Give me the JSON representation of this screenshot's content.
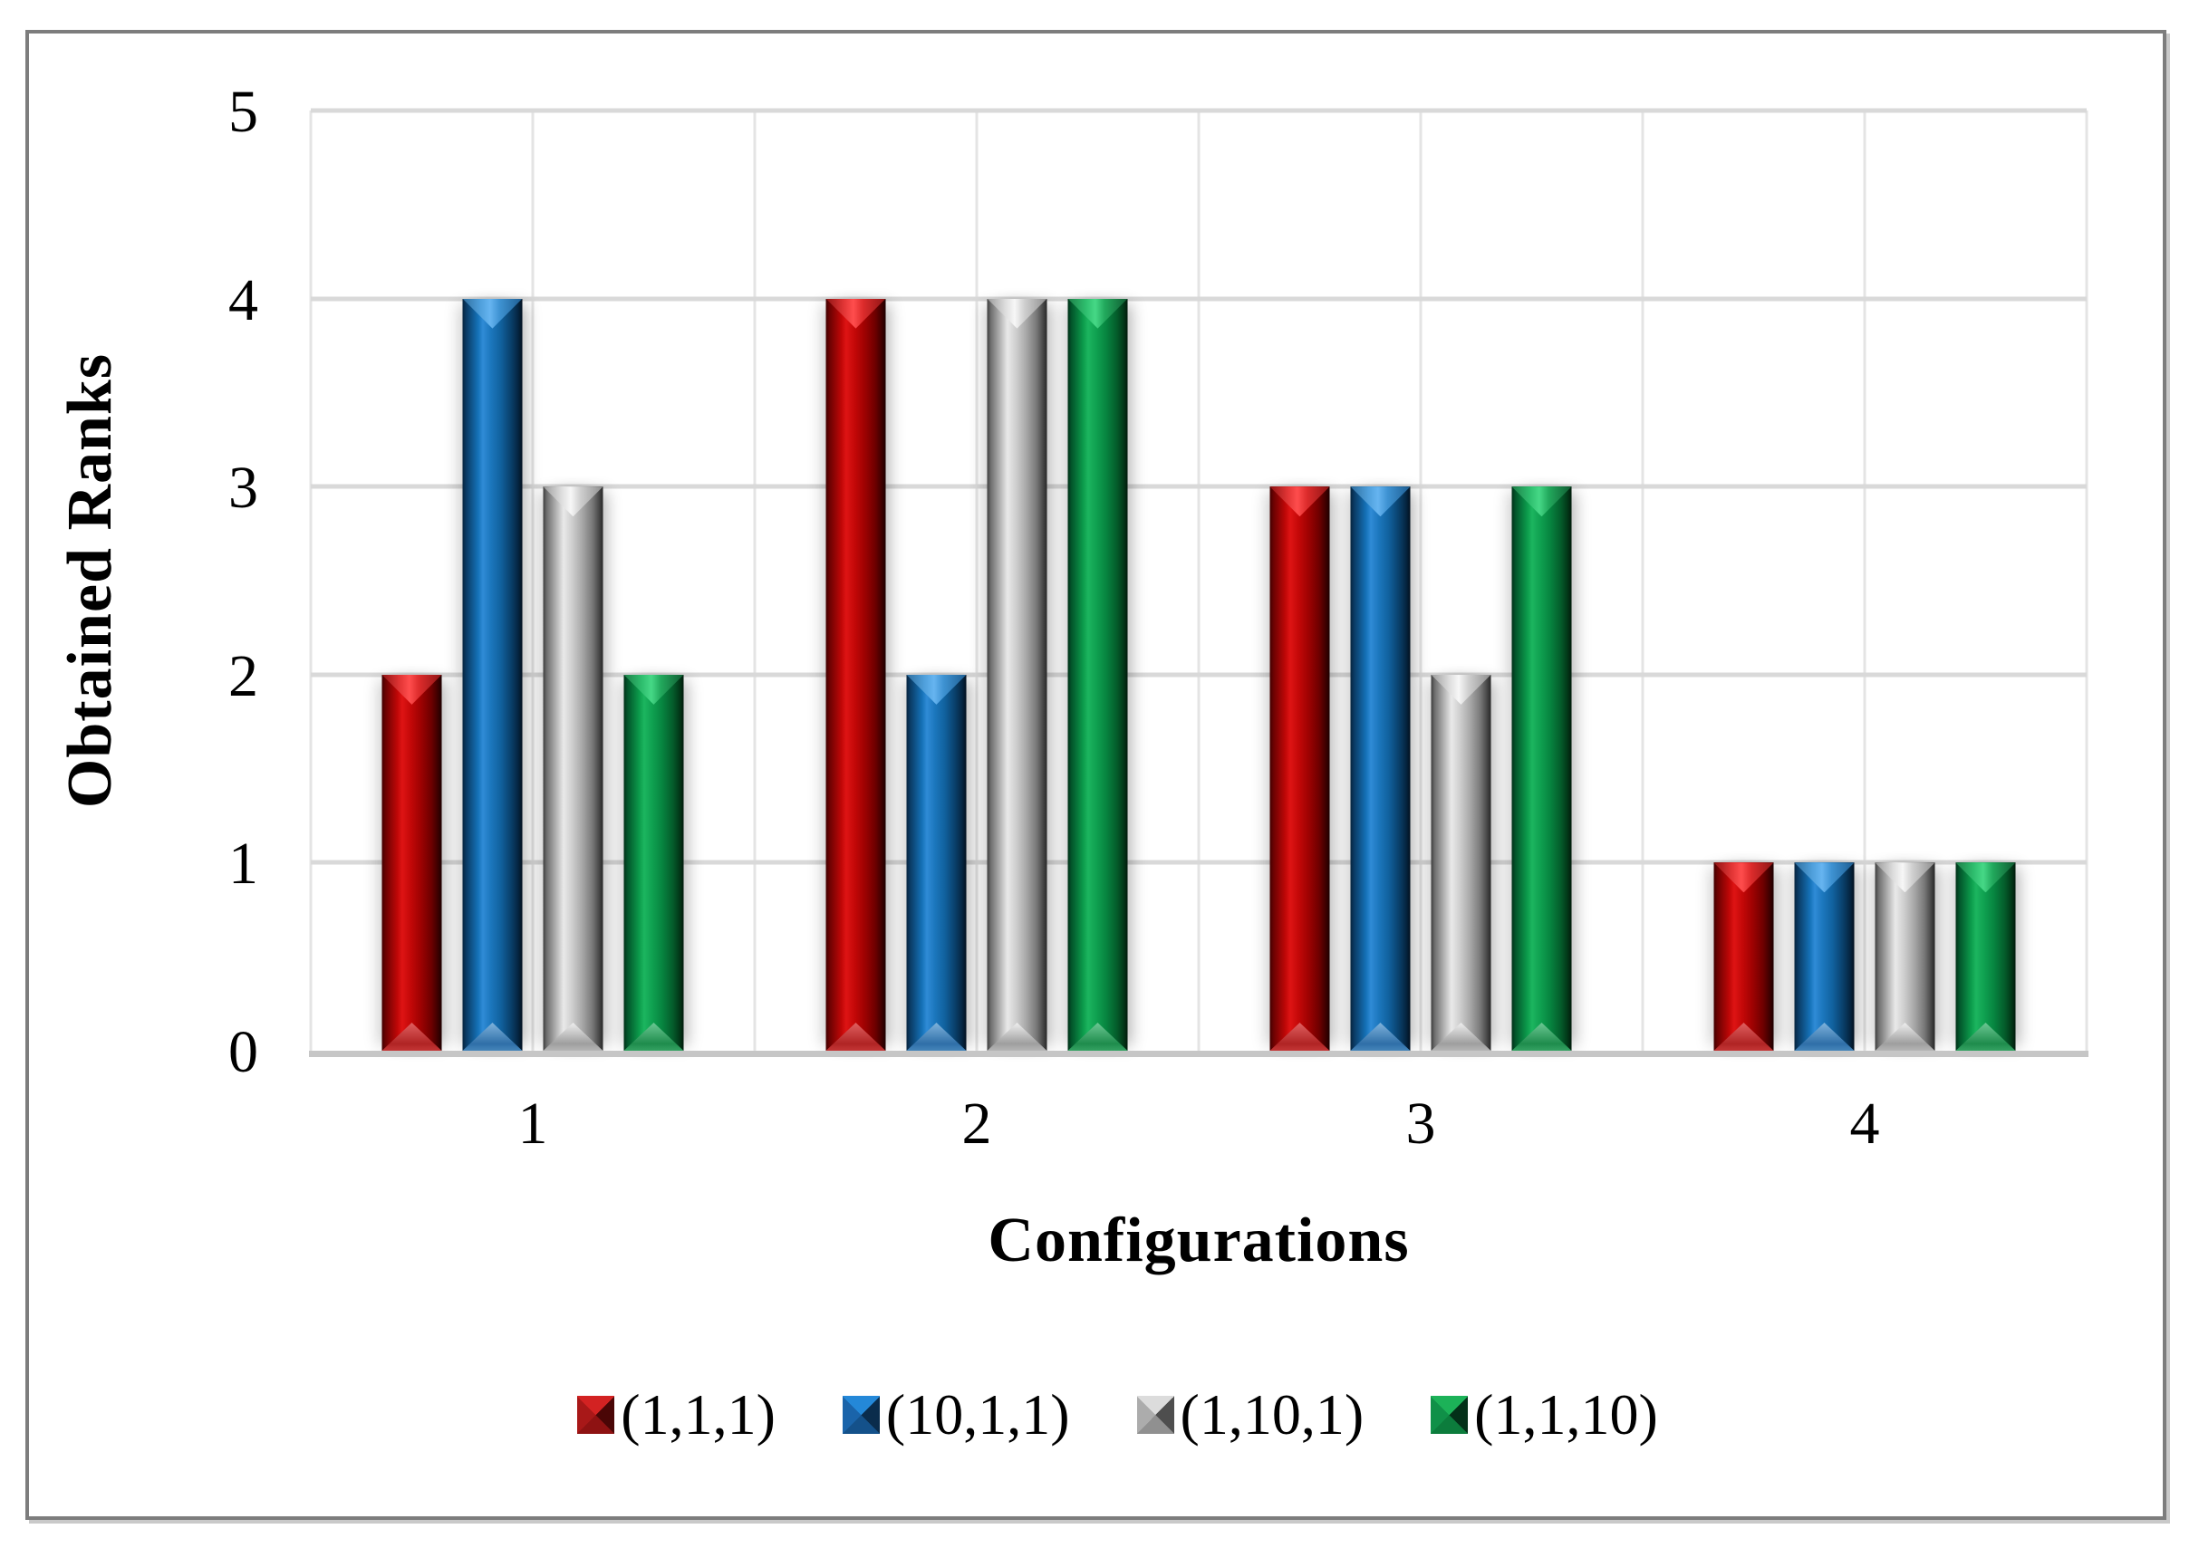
{
  "chart_data": {
    "type": "bar",
    "title": "",
    "xlabel": "Configurations",
    "ylabel": "Obtained Ranks",
    "categories": [
      "1",
      "2",
      "3",
      "4"
    ],
    "series": [
      {
        "name": "(1,1,1)",
        "color": "#C00000",
        "values": [
          2,
          4,
          3,
          1
        ]
      },
      {
        "name": "(10,1,1)",
        "color": "#1F7BC4",
        "values": [
          4,
          2,
          3,
          1
        ]
      },
      {
        "name": "(1,10,1)",
        "color": "#BFBFBF",
        "values": [
          3,
          4,
          2,
          1
        ]
      },
      {
        "name": "(1,1,10)",
        "color": "#12A452",
        "values": [
          2,
          4,
          3,
          1
        ]
      }
    ],
    "ylim": [
      0,
      5
    ],
    "yticks": [
      0,
      1,
      2,
      3,
      4,
      5
    ],
    "grid": true,
    "gridline_color": "#D9D9D9",
    "axis_line_color": "#C6C6C6",
    "frame_color": "#7D7D7D",
    "legend_position": "bottom"
  }
}
